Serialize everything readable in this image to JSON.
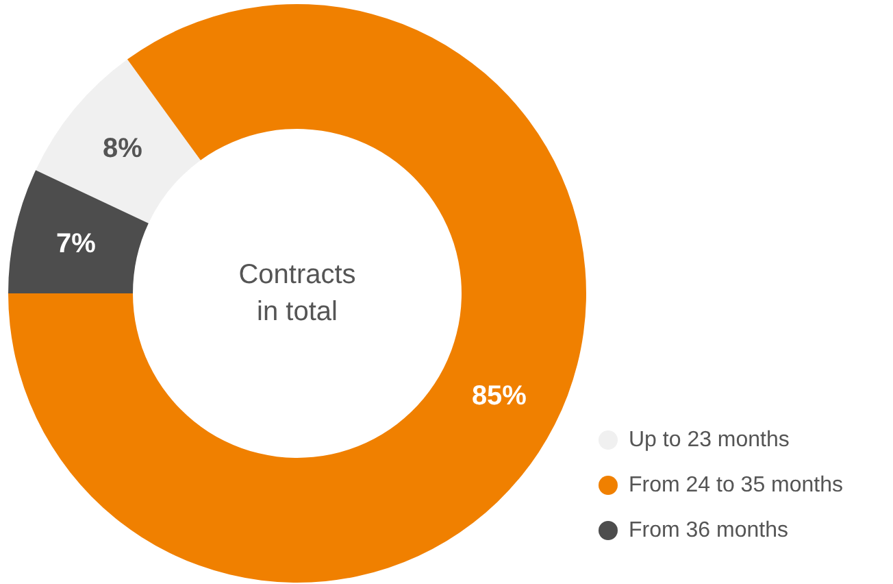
{
  "chart_data": {
    "type": "donut",
    "title": "Contracts in total",
    "categories": [
      "Up to 23 months",
      "From 24 to 35 months",
      "From 36 months"
    ],
    "values": [
      8,
      85,
      7
    ],
    "colors": [
      "#f0f0f0",
      "#f08000",
      "#4d4d4d"
    ],
    "value_labels": [
      "8%",
      "85%",
      "7%"
    ],
    "legend": "bottom right"
  }
}
